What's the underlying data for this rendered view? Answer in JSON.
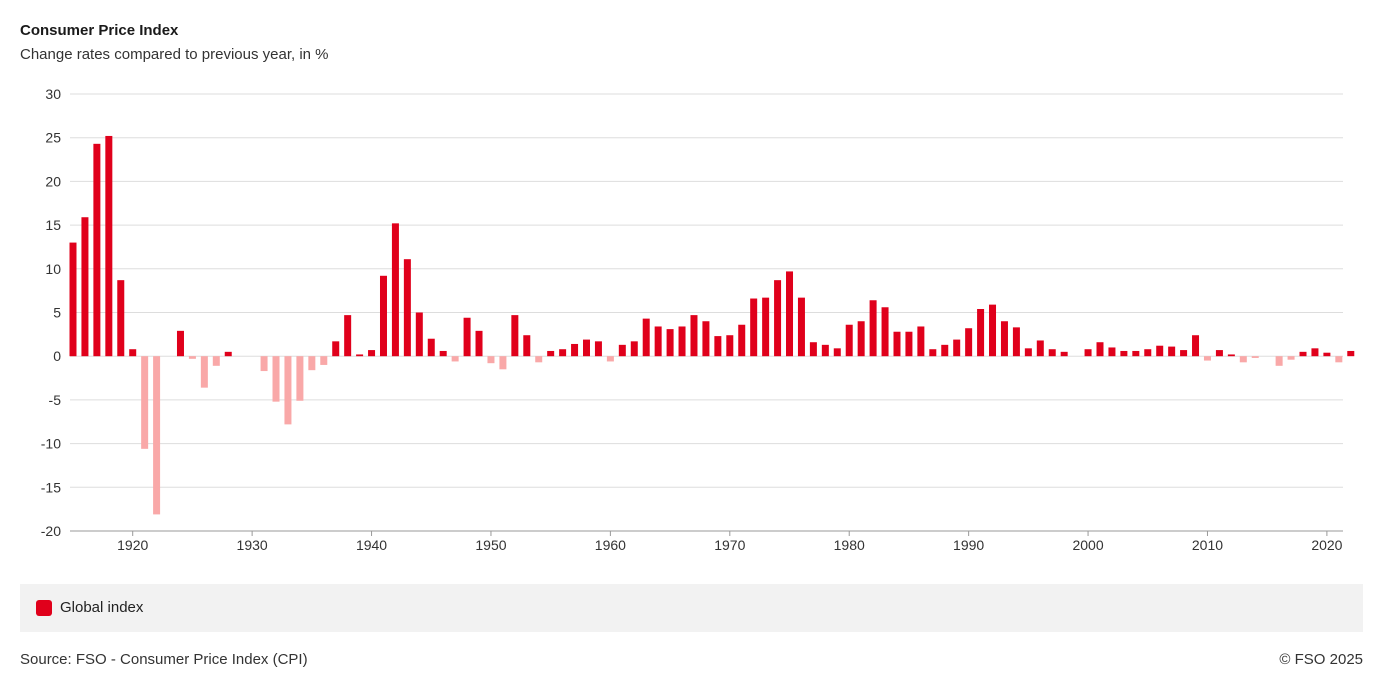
{
  "header": {
    "title": "Consumer Price Index",
    "subtitle": "Change rates compared to previous year, in %"
  },
  "legend": {
    "label": "Global index"
  },
  "footer": {
    "source": "Source: FSO - Consumer Price Index (CPI)",
    "copyright": "© FSO 2025"
  },
  "colors": {
    "positive": "#e0001b",
    "negative": "#f9a8a8",
    "grid": "#dddddd",
    "axis": "#999999"
  },
  "chart_data": {
    "type": "bar",
    "title": "Consumer Price Index",
    "subtitle": "Change rates compared to previous year, in %",
    "xlabel": "",
    "ylabel": "",
    "ylim": [
      -20,
      30
    ],
    "yticks": [
      30,
      25,
      20,
      15,
      10,
      5,
      0,
      -5,
      -10,
      -15,
      -20
    ],
    "xticks": [
      1920,
      1930,
      1940,
      1950,
      1960,
      1970,
      1980,
      1990,
      2000,
      2010,
      2020
    ],
    "x_start": 1915,
    "x_end": 2021,
    "grid": true,
    "legend_position": "bottom",
    "series": [
      {
        "name": "Global index",
        "points": [
          [
            1915,
            13.0
          ],
          [
            1916,
            15.9
          ],
          [
            1917,
            24.3
          ],
          [
            1918,
            25.2
          ],
          [
            1919,
            8.7
          ],
          [
            1920,
            0.8
          ],
          [
            1921,
            -10.6
          ],
          [
            1922,
            -18.1
          ],
          [
            1923,
            0.0
          ],
          [
            1924,
            2.9
          ],
          [
            1925,
            -0.3
          ],
          [
            1926,
            -3.6
          ],
          [
            1927,
            -1.1
          ],
          [
            1928,
            0.5
          ],
          [
            1929,
            0.0
          ],
          [
            1930,
            0.0
          ],
          [
            1931,
            -1.7
          ],
          [
            1932,
            -5.2
          ],
          [
            1933,
            -7.8
          ],
          [
            1934,
            -5.1
          ],
          [
            1935,
            -1.6
          ],
          [
            1936,
            -1.0
          ],
          [
            1937,
            1.7
          ],
          [
            1938,
            4.7
          ],
          [
            1939,
            0.2
          ],
          [
            1940,
            0.7
          ],
          [
            1941,
            9.2
          ],
          [
            1942,
            15.2
          ],
          [
            1943,
            11.1
          ],
          [
            1944,
            5.0
          ],
          [
            1945,
            2.0
          ],
          [
            1946,
            0.6
          ],
          [
            1947,
            -0.6
          ],
          [
            1948,
            4.4
          ],
          [
            1949,
            2.9
          ],
          [
            1950,
            -0.8
          ],
          [
            1951,
            -1.5
          ],
          [
            1952,
            4.7
          ],
          [
            1953,
            2.4
          ],
          [
            1954,
            -0.7
          ],
          [
            1955,
            0.6
          ],
          [
            1956,
            0.8
          ],
          [
            1957,
            1.4
          ],
          [
            1958,
            1.9
          ],
          [
            1959,
            1.7
          ],
          [
            1960,
            -0.6
          ],
          [
            1961,
            1.3
          ],
          [
            1962,
            1.7
          ],
          [
            1963,
            4.3
          ],
          [
            1964,
            3.4
          ],
          [
            1965,
            3.1
          ],
          [
            1966,
            3.4
          ],
          [
            1967,
            4.7
          ],
          [
            1968,
            4.0
          ],
          [
            1969,
            2.3
          ],
          [
            1970,
            2.4
          ],
          [
            1971,
            3.6
          ],
          [
            1972,
            6.6
          ],
          [
            1973,
            6.7
          ],
          [
            1974,
            8.7
          ],
          [
            1975,
            9.7
          ],
          [
            1976,
            6.7
          ],
          [
            1977,
            1.6
          ],
          [
            1978,
            1.3
          ],
          [
            1979,
            0.9
          ],
          [
            1980,
            3.6
          ],
          [
            1981,
            4.0
          ],
          [
            1982,
            6.4
          ],
          [
            1983,
            5.6
          ],
          [
            1984,
            2.8
          ],
          [
            1985,
            2.8
          ],
          [
            1986,
            3.4
          ],
          [
            1987,
            0.8
          ],
          [
            1988,
            1.3
          ],
          [
            1989,
            1.9
          ],
          [
            1990,
            3.2
          ],
          [
            1991,
            5.4
          ],
          [
            1992,
            5.9
          ],
          [
            1993,
            4.0
          ],
          [
            1994,
            3.3
          ],
          [
            1995,
            0.9
          ],
          [
            1996,
            1.8
          ],
          [
            1997,
            0.8
          ],
          [
            1998,
            0.5
          ],
          [
            1999,
            0.0
          ],
          [
            2000,
            0.8
          ],
          [
            2001,
            1.6
          ],
          [
            2002,
            1.0
          ],
          [
            2003,
            0.6
          ],
          [
            2004,
            0.6
          ],
          [
            2005,
            0.8
          ],
          [
            2006,
            1.2
          ],
          [
            2007,
            1.1
          ],
          [
            2008,
            0.7
          ],
          [
            2009,
            2.4
          ],
          [
            2010,
            -0.5
          ],
          [
            2011,
            0.7
          ],
          [
            2012,
            0.2
          ],
          [
            2013,
            -0.7
          ],
          [
            2014,
            -0.2
          ],
          [
            2015,
            0.0
          ],
          [
            2016,
            -1.1
          ],
          [
            2017,
            -0.4
          ],
          [
            2018,
            0.5
          ],
          [
            2019,
            0.9
          ],
          [
            2020,
            0.4
          ],
          [
            2021,
            -0.7
          ],
          [
            2022,
            0.6
          ]
        ]
      }
    ]
  }
}
